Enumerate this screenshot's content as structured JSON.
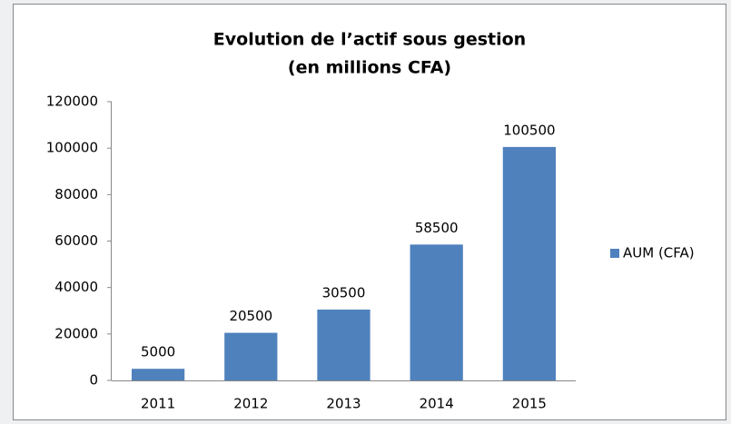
{
  "chart_data": {
    "type": "bar",
    "title": "Evolution de l’actif sous gestion",
    "subtitle": "(en millions CFA)",
    "categories": [
      "2011",
      "2012",
      "2013",
      "2014",
      "2015"
    ],
    "series": [
      {
        "name": "AUM (CFA)",
        "color": "#4f81bd",
        "values": [
          5000,
          20500,
          30500,
          58500,
          100500
        ]
      }
    ],
    "ylim": [
      0,
      120000
    ],
    "yticks": [
      0,
      20000,
      40000,
      60000,
      80000,
      100000,
      120000
    ],
    "grid": false,
    "legend": "right",
    "data_labels": true
  }
}
